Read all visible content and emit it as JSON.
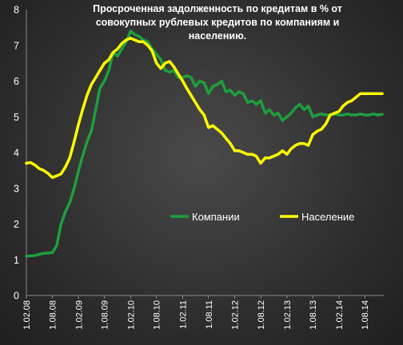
{
  "chart_data": {
    "type": "line",
    "title_lines": [
      "Просроченная задолженность по кредитам в % от",
      "совокупных рублевых кредитов по компаниям и",
      "населению."
    ],
    "xlabel": "",
    "ylabel": "",
    "ylim": [
      0,
      8
    ],
    "yticks": [
      "0",
      "1",
      "2",
      "3",
      "4",
      "5",
      "6",
      "7",
      "8"
    ],
    "xlim": [
      "2008-02-01",
      "2014-12-01"
    ],
    "xtick_labels": [
      "1.02.08",
      "1.08.08",
      "1.02.09",
      "1.08.09",
      "1.02.10",
      "1.08.10",
      "1.02.11",
      "1.08.11",
      "1.02.12",
      "1.08.12",
      "1.02.13",
      "1.08.13",
      "1.02.14",
      "1.08.14"
    ],
    "xtick_dates": [
      "2008-02-01",
      "2008-08-01",
      "2009-02-01",
      "2009-08-01",
      "2010-02-01",
      "2010-08-01",
      "2011-02-01",
      "2011-08-01",
      "2012-02-01",
      "2012-08-01",
      "2013-02-01",
      "2013-08-01",
      "2014-02-01",
      "2014-08-01"
    ],
    "legend_position": "center-right",
    "grid": false,
    "series": [
      {
        "name": "Компании",
        "color": "#1e9e3e",
        "x": [
          "2008-02-01",
          "2008-04-01",
          "2008-06-01",
          "2008-08-01",
          "2008-09-01",
          "2008-10-01",
          "2008-11-01",
          "2008-12-01",
          "2009-01-01",
          "2009-02-01",
          "2009-03-01",
          "2009-04-01",
          "2009-05-01",
          "2009-06-01",
          "2009-07-01",
          "2009-08-01",
          "2009-09-01",
          "2009-10-01",
          "2009-11-01",
          "2009-12-01",
          "2010-01-01",
          "2010-02-01",
          "2010-03-01",
          "2010-04-01",
          "2010-05-01",
          "2010-06-01",
          "2010-07-01",
          "2010-08-01",
          "2010-09-01",
          "2010-10-01",
          "2010-11-01",
          "2010-12-01",
          "2011-01-01",
          "2011-02-01",
          "2011-03-01",
          "2011-04-01",
          "2011-05-01",
          "2011-06-01",
          "2011-07-01",
          "2011-08-01",
          "2011-09-01",
          "2011-10-01",
          "2011-11-01",
          "2011-12-01",
          "2012-01-01",
          "2012-02-01",
          "2012-03-01",
          "2012-04-01",
          "2012-05-01",
          "2012-06-01",
          "2012-07-01",
          "2012-08-01",
          "2012-09-01",
          "2012-10-01",
          "2012-11-01",
          "2012-12-01",
          "2013-01-01",
          "2013-02-01",
          "2013-03-01",
          "2013-04-01",
          "2013-05-01",
          "2013-06-01",
          "2013-07-01",
          "2013-08-01",
          "2013-09-01",
          "2013-10-01",
          "2013-11-01",
          "2013-12-01",
          "2014-01-01",
          "2014-02-01",
          "2014-03-01",
          "2014-04-01",
          "2014-05-01",
          "2014-06-01",
          "2014-07-01",
          "2014-08-01",
          "2014-09-01",
          "2014-10-01",
          "2014-11-01",
          "2014-12-01"
        ],
        "values": [
          1.1,
          1.12,
          1.18,
          1.2,
          1.4,
          2.0,
          2.35,
          2.6,
          3.0,
          3.5,
          3.9,
          4.3,
          4.6,
          5.2,
          5.8,
          6.0,
          6.3,
          6.8,
          6.7,
          6.9,
          7.1,
          7.4,
          7.3,
          7.25,
          7.15,
          7.1,
          6.9,
          6.75,
          6.6,
          6.3,
          6.25,
          6.3,
          6.1,
          6.1,
          6.15,
          6.1,
          5.85,
          6.0,
          5.95,
          5.65,
          5.85,
          5.9,
          6.0,
          5.7,
          5.75,
          5.6,
          5.7,
          5.65,
          5.4,
          5.45,
          5.35,
          5.45,
          5.1,
          5.2,
          5.05,
          5.1,
          4.9,
          5.0,
          5.1,
          5.25,
          5.35,
          5.2,
          5.3,
          5.0,
          5.05,
          5.08,
          5.05,
          5.05,
          5.08,
          5.05,
          5.05,
          5.08,
          5.05,
          5.05,
          5.08,
          5.05,
          5.05,
          5.08,
          5.05,
          5.07
        ]
      },
      {
        "name": "Население",
        "color": "#ffff00",
        "x": [
          "2008-02-01",
          "2008-03-01",
          "2008-04-01",
          "2008-05-01",
          "2008-06-01",
          "2008-07-01",
          "2008-08-01",
          "2008-09-01",
          "2008-10-01",
          "2008-11-01",
          "2008-12-01",
          "2009-01-01",
          "2009-02-01",
          "2009-03-01",
          "2009-04-01",
          "2009-05-01",
          "2009-06-01",
          "2009-07-01",
          "2009-08-01",
          "2009-09-01",
          "2009-10-01",
          "2009-11-01",
          "2009-12-01",
          "2010-01-01",
          "2010-02-01",
          "2010-03-01",
          "2010-04-01",
          "2010-05-01",
          "2010-06-01",
          "2010-07-01",
          "2010-08-01",
          "2010-09-01",
          "2010-10-01",
          "2010-11-01",
          "2010-12-01",
          "2011-01-01",
          "2011-02-01",
          "2011-03-01",
          "2011-04-01",
          "2011-05-01",
          "2011-06-01",
          "2011-07-01",
          "2011-08-01",
          "2011-09-01",
          "2011-10-01",
          "2011-11-01",
          "2011-12-01",
          "2012-01-01",
          "2012-02-01",
          "2012-03-01",
          "2012-04-01",
          "2012-05-01",
          "2012-06-01",
          "2012-07-01",
          "2012-08-01",
          "2012-09-01",
          "2012-10-01",
          "2012-11-01",
          "2012-12-01",
          "2013-01-01",
          "2013-02-01",
          "2013-03-01",
          "2013-04-01",
          "2013-05-01",
          "2013-06-01",
          "2013-07-01",
          "2013-08-01",
          "2013-09-01",
          "2013-10-01",
          "2013-11-01",
          "2013-12-01",
          "2014-01-01",
          "2014-02-01",
          "2014-03-01",
          "2014-04-01",
          "2014-05-01",
          "2014-06-01",
          "2014-07-01",
          "2014-08-01",
          "2014-09-01",
          "2014-10-01",
          "2014-11-01",
          "2014-12-01"
        ],
        "values": [
          3.7,
          3.72,
          3.65,
          3.55,
          3.5,
          3.42,
          3.3,
          3.35,
          3.4,
          3.6,
          3.85,
          4.3,
          4.8,
          5.2,
          5.6,
          5.9,
          6.1,
          6.3,
          6.5,
          6.6,
          6.8,
          6.9,
          7.05,
          7.15,
          7.2,
          7.15,
          7.1,
          7.1,
          7.0,
          6.85,
          6.5,
          6.35,
          6.5,
          6.55,
          6.4,
          6.2,
          6.0,
          5.8,
          5.6,
          5.4,
          5.2,
          5.05,
          4.7,
          4.75,
          4.65,
          4.55,
          4.4,
          4.25,
          4.05,
          4.05,
          4.0,
          3.95,
          3.95,
          3.9,
          3.7,
          3.85,
          3.85,
          3.9,
          3.95,
          4.05,
          3.95,
          4.1,
          4.2,
          4.25,
          4.25,
          4.2,
          4.5,
          4.6,
          4.65,
          4.8,
          5.05,
          5.1,
          5.15,
          5.3,
          5.4,
          5.45,
          5.55,
          5.65,
          5.65,
          5.65,
          5.65,
          5.65,
          5.65
        ]
      }
    ]
  }
}
